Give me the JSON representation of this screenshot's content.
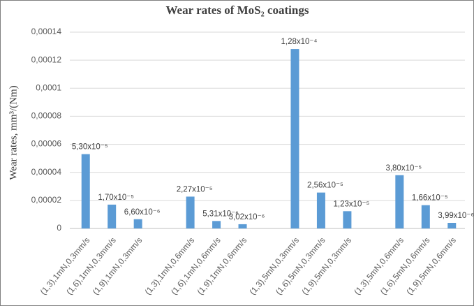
{
  "chart_data": {
    "type": "bar",
    "title": "Wear rates of MoS₂ coatings",
    "y_label": "Wear rates, mm³/(Nm)",
    "categories": [
      "(1,3),1mN,0,3mm/s",
      "(1,6),1mN,0,3mm/s",
      "(1,9),1mN,0,3mm/s",
      null,
      "(1,3),1mN,0,6mm/s",
      "(1,6),1mN,0,6mm/s",
      "(1,9),1mN,0,6mm/s",
      null,
      "(1,3),5mN,0,3mm/s",
      "(1,6),5mN,0,3mm/s",
      "(1,9),5mN,0,3mm/s",
      null,
      "(1,3),5mN,0,6mm/s",
      "(1,6),5mN,0,6mm/s",
      "(1,9),5mN,0,6mm/s"
    ],
    "values": [
      5.3e-05,
      1.7e-05,
      6.6e-06,
      null,
      2.27e-05,
      5.31e-06,
      3.02e-06,
      null,
      0.000128,
      2.56e-05,
      1.23e-05,
      null,
      3.8e-05,
      1.66e-05,
      3.99e-06
    ],
    "value_labels": [
      "5,30x10⁻⁵",
      "1,70x10⁻⁵",
      "6,60x10⁻⁶",
      null,
      "2,27x10⁻⁵",
      "5,31x10⁻⁶",
      "3,02x10⁻⁶",
      null,
      "1,28x10⁻⁴",
      "2,56x10⁻⁵",
      "1,23x10⁻⁵",
      null,
      "3,80x10⁻⁵",
      "1,66x10⁻⁵",
      "3,99x10⁻⁶"
    ],
    "color": "#5b9bd5",
    "ylim": [
      0,
      0.00014
    ],
    "yticks": [
      0,
      {
        "value": 2e-05,
        "label": "0,00002"
      },
      {
        "value": 4e-05,
        "label": "0,00004"
      },
      {
        "value": 6e-05,
        "label": "0,00006"
      },
      {
        "value": 8e-05,
        "label": "0,00008"
      },
      {
        "value": 0.0001,
        "label": "0,0001"
      },
      {
        "value": 0.00012,
        "label": "0,00012"
      },
      {
        "value": 0.00014,
        "label": "0,00014"
      }
    ],
    "grid": true
  }
}
